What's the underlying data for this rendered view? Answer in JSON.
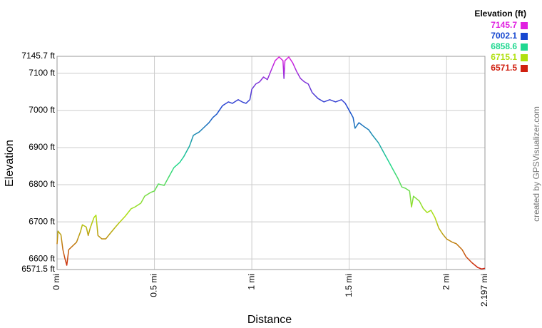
{
  "chart_data": {
    "type": "line",
    "xlabel": "Distance",
    "ylabel": "Elevation",
    "credit": "created by GPSVisualizer.com",
    "x": [
      0,
      0.005,
      0.02,
      0.03,
      0.04,
      0.05,
      0.06,
      0.08,
      0.1,
      0.12,
      0.13,
      0.15,
      0.16,
      0.17,
      0.19,
      0.2,
      0.21,
      0.23,
      0.25,
      0.27,
      0.3,
      0.32,
      0.35,
      0.38,
      0.4,
      0.43,
      0.45,
      0.48,
      0.5,
      0.52,
      0.55,
      0.58,
      0.6,
      0.63,
      0.65,
      0.68,
      0.7,
      0.73,
      0.75,
      0.78,
      0.8,
      0.82,
      0.85,
      0.88,
      0.9,
      0.93,
      0.95,
      0.97,
      0.99,
      1.0,
      1.02,
      1.04,
      1.06,
      1.08,
      1.1,
      1.12,
      1.14,
      1.16,
      1.165,
      1.17,
      1.19,
      1.21,
      1.23,
      1.25,
      1.27,
      1.29,
      1.31,
      1.34,
      1.37,
      1.4,
      1.43,
      1.46,
      1.48,
      1.5,
      1.52,
      1.53,
      1.55,
      1.58,
      1.6,
      1.62,
      1.65,
      1.68,
      1.7,
      1.73,
      1.75,
      1.77,
      1.79,
      1.81,
      1.82,
      1.83,
      1.86,
      1.88,
      1.9,
      1.92,
      1.94,
      1.96,
      1.98,
      2.0,
      2.03,
      2.05,
      2.08,
      2.1,
      2.13,
      2.16,
      2.18,
      2.197
    ],
    "values": [
      6640,
      6675,
      6665,
      6625,
      6602,
      6583,
      6625,
      6635,
      6645,
      6673,
      6692,
      6686,
      6663,
      6683,
      6712,
      6718,
      6663,
      6654,
      6654,
      6667,
      6686,
      6698,
      6715,
      6735,
      6740,
      6750,
      6769,
      6779,
      6783,
      6802,
      6798,
      6827,
      6846,
      6860,
      6875,
      6904,
      6933,
      6942,
      6952,
      6967,
      6981,
      6990,
      7013,
      7023,
      7019,
      7029,
      7023,
      7019,
      7029,
      7057,
      7071,
      7077,
      7090,
      7083,
      7109,
      7134,
      7144,
      7134,
      7086,
      7134,
      7144,
      7128,
      7105,
      7086,
      7077,
      7071,
      7048,
      7032,
      7023,
      7029,
      7023,
      7029,
      7019,
      7000,
      6981,
      6952,
      6967,
      6955,
      6948,
      6933,
      6913,
      6884,
      6865,
      6836,
      6817,
      6794,
      6790,
      6783,
      6740,
      6769,
      6756,
      6736,
      6725,
      6731,
      6712,
      6683,
      6667,
      6654,
      6645,
      6641,
      6625,
      6606,
      6590,
      6577,
      6573,
      6575
    ],
    "xlim": [
      0,
      2.197
    ],
    "xticks": [
      {
        "value": 0,
        "label": "0 mi"
      },
      {
        "value": 0.5,
        "label": "0.5 mi"
      },
      {
        "value": 1,
        "label": "1 mi"
      },
      {
        "value": 1.5,
        "label": "1.5 mi"
      },
      {
        "value": 2,
        "label": "2 mi"
      },
      {
        "value": 2.197,
        "label": "2.197 mi"
      }
    ],
    "ylim": [
      6571.5,
      7145.7
    ],
    "yticks": [
      {
        "value": 6571.5,
        "label": "6571.5 ft"
      },
      {
        "value": 6600,
        "label": "6600 ft"
      },
      {
        "value": 6700,
        "label": "6700 ft"
      },
      {
        "value": 6800,
        "label": "6800 ft"
      },
      {
        "value": 6900,
        "label": "6900 ft"
      },
      {
        "value": 7000,
        "label": "7000 ft"
      },
      {
        "value": 7100,
        "label": "7100 ft"
      },
      {
        "value": 7145.7,
        "label": "7145.7 ft"
      }
    ],
    "grid": true,
    "color_legend": {
      "title": "Elevation (ft)",
      "entries": [
        {
          "value": 7145.7,
          "color": "#e020e0"
        },
        {
          "value": 7002.1,
          "color": "#1848d0"
        },
        {
          "value": 6858.6,
          "color": "#20d890"
        },
        {
          "value": 6715.1,
          "color": "#b0e010"
        },
        {
          "value": 6571.5,
          "color": "#d02010"
        }
      ]
    }
  }
}
